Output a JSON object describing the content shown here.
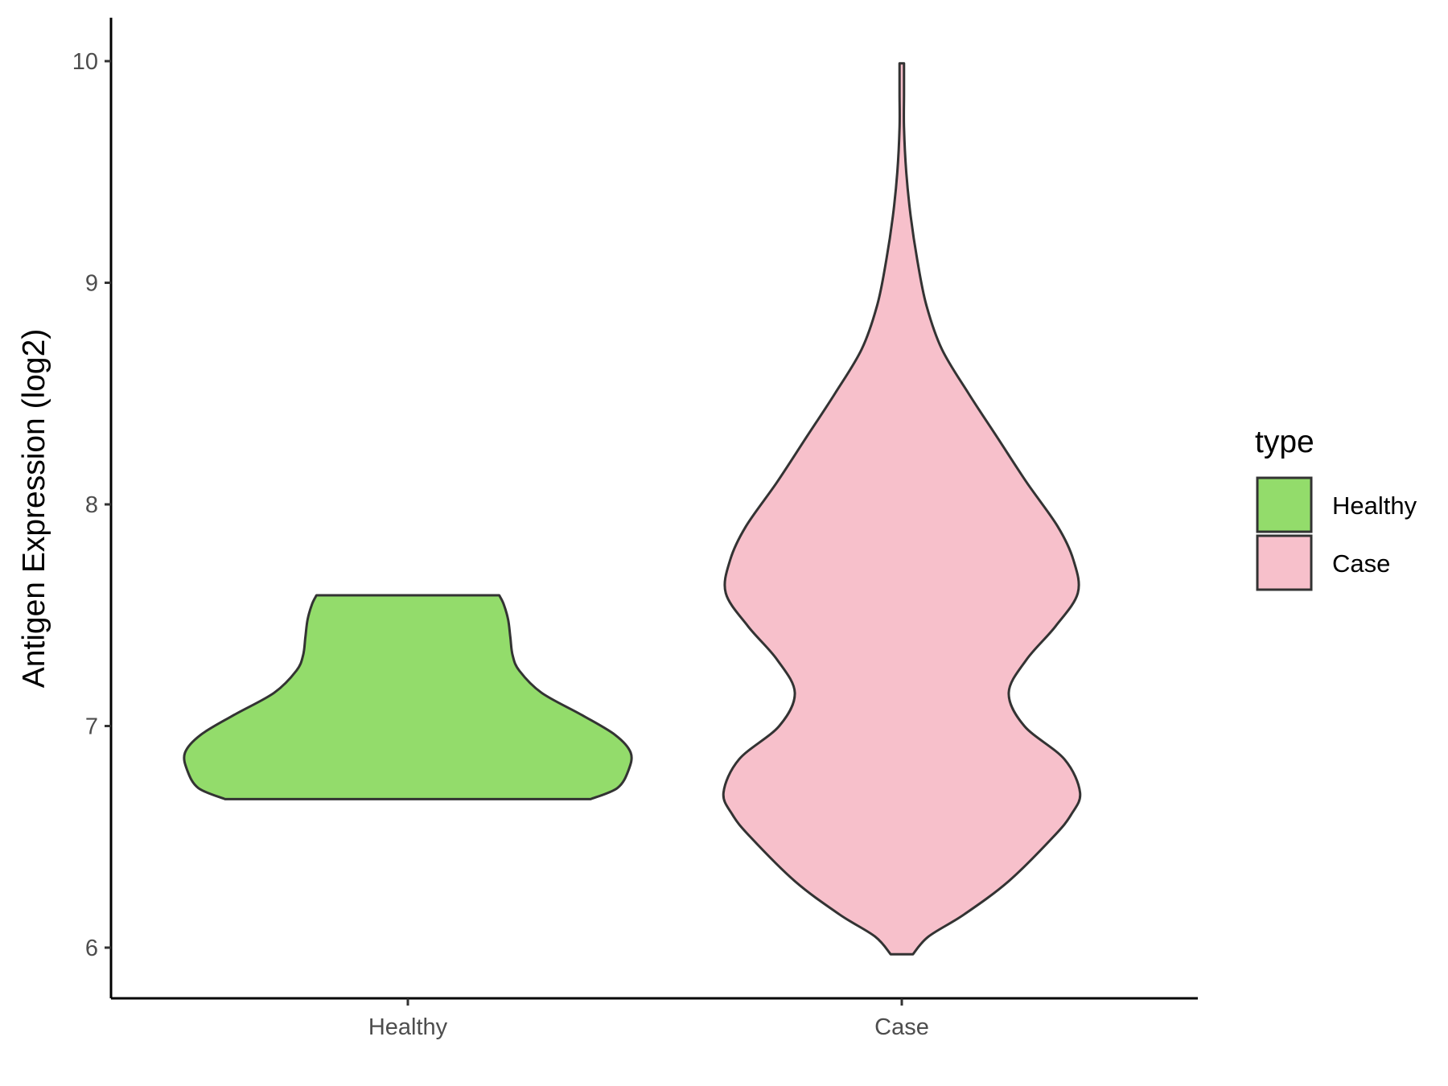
{
  "chart_data": {
    "type": "violin",
    "ylabel": "Antigen Expression (log2)",
    "xlabel": "",
    "categories": [
      "Healthy",
      "Case"
    ],
    "y_ticks": [
      "6",
      "7",
      "8",
      "9",
      "10"
    ],
    "ylim": [
      5.77,
      10.19
    ],
    "legend": {
      "title": "type",
      "position": "right",
      "entries": [
        "Healthy",
        "Case"
      ]
    },
    "grid": false,
    "colors": {
      "Healthy": "#93dc6b",
      "Case": "#f7c0cb",
      "outline": "#333333"
    },
    "series": [
      {
        "name": "Healthy",
        "min": 6.67,
        "max": 7.59,
        "density_profile": [
          [
            6.67,
            0.82
          ],
          [
            6.72,
            0.94
          ],
          [
            6.8,
            0.99
          ],
          [
            6.88,
            1.0
          ],
          [
            6.96,
            0.93
          ],
          [
            7.05,
            0.78
          ],
          [
            7.15,
            0.6
          ],
          [
            7.25,
            0.5
          ],
          [
            7.32,
            0.47
          ],
          [
            7.4,
            0.46
          ],
          [
            7.48,
            0.45
          ],
          [
            7.55,
            0.43
          ],
          [
            7.59,
            0.41
          ]
        ]
      },
      {
        "name": "Case",
        "min": 5.97,
        "max": 9.99,
        "density_profile": [
          [
            5.97,
            0.05
          ],
          [
            6.05,
            0.12
          ],
          [
            6.15,
            0.28
          ],
          [
            6.3,
            0.48
          ],
          [
            6.5,
            0.68
          ],
          [
            6.6,
            0.76
          ],
          [
            6.7,
            0.8
          ],
          [
            6.85,
            0.73
          ],
          [
            7.0,
            0.55
          ],
          [
            7.15,
            0.48
          ],
          [
            7.3,
            0.56
          ],
          [
            7.45,
            0.69
          ],
          [
            7.6,
            0.79
          ],
          [
            7.75,
            0.77
          ],
          [
            7.9,
            0.7
          ],
          [
            8.1,
            0.56
          ],
          [
            8.3,
            0.43
          ],
          [
            8.5,
            0.3
          ],
          [
            8.7,
            0.18
          ],
          [
            8.9,
            0.11
          ],
          [
            9.1,
            0.07
          ],
          [
            9.3,
            0.04
          ],
          [
            9.5,
            0.02
          ],
          [
            9.7,
            0.01
          ],
          [
            9.85,
            0.01
          ],
          [
            9.99,
            0.01
          ]
        ]
      }
    ]
  }
}
